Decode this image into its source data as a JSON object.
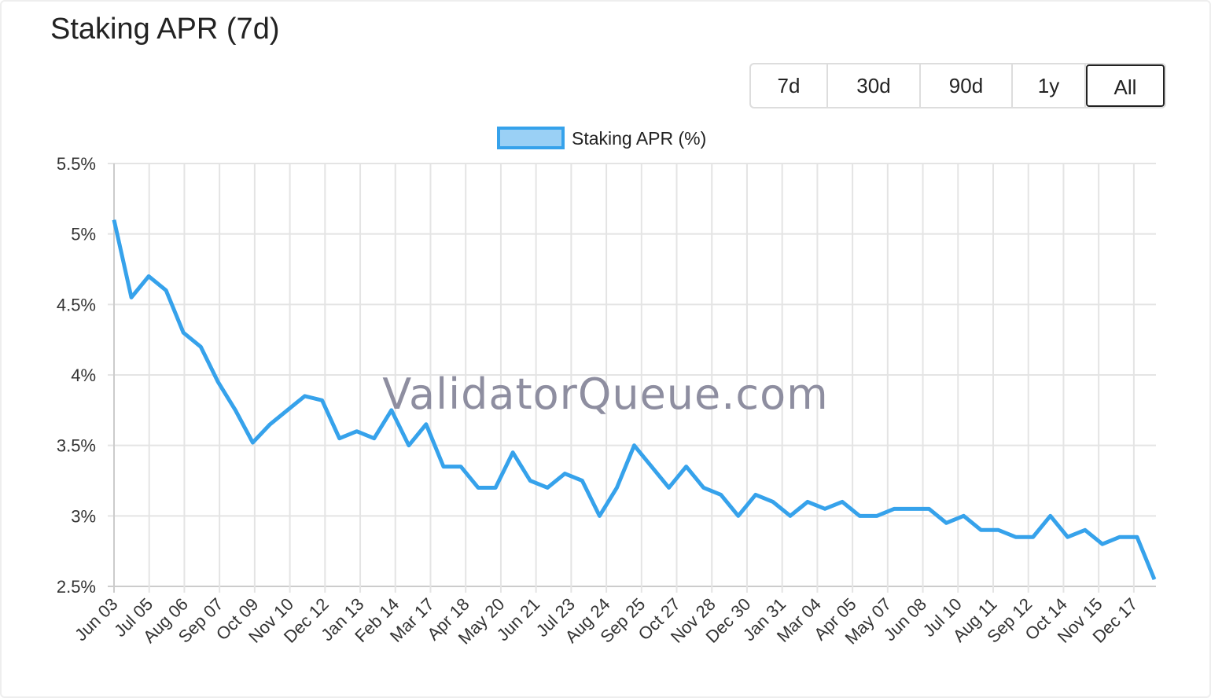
{
  "title": "Staking APR (7d)",
  "range_buttons": [
    {
      "label": "7d",
      "active": false
    },
    {
      "label": "30d",
      "active": false
    },
    {
      "label": "90d",
      "active": false
    },
    {
      "label": "1y",
      "active": false
    },
    {
      "label": "All",
      "active": true
    }
  ],
  "watermark": "ValidatorQueue.com",
  "chart_data": {
    "type": "line",
    "title": "",
    "legend": {
      "position": "top",
      "entries": [
        "Staking APR (%)"
      ]
    },
    "series": [
      {
        "name": "Staking APR (%)",
        "color": "#36a2eb",
        "fill": "#9ad0f5",
        "values": [
          5.1,
          4.55,
          4.7,
          4.6,
          4.3,
          4.2,
          3.95,
          3.75,
          3.52,
          3.65,
          3.75,
          3.85,
          3.82,
          3.55,
          3.6,
          3.55,
          3.75,
          3.5,
          3.65,
          3.35,
          3.35,
          3.2,
          3.2,
          3.45,
          3.25,
          3.2,
          3.3,
          3.25,
          3.0,
          3.2,
          3.5,
          3.35,
          3.2,
          3.35,
          3.2,
          3.15,
          3.0,
          3.15,
          3.1,
          3.0,
          3.1,
          3.05,
          3.1,
          3.0,
          3.0,
          3.05,
          3.05,
          3.05,
          2.95,
          3.0,
          2.9,
          2.9,
          2.85,
          2.85,
          3.0,
          2.85,
          2.9,
          2.8,
          2.85,
          2.85,
          2.55
        ]
      }
    ],
    "x_tick_labels": [
      "Jun 03",
      "Jul 05",
      "Aug 06",
      "Sep 07",
      "Oct 09",
      "Nov 10",
      "Dec 12",
      "Jan 13",
      "Feb 14",
      "Mar 17",
      "Apr 18",
      "May 20",
      "Jun 21",
      "Jul 23",
      "Aug 24",
      "Sep 25",
      "Oct 27",
      "Nov 28",
      "Dec 30",
      "Jan 31",
      "Mar 04",
      "Apr 05",
      "May 07",
      "Jun 08",
      "Jul 10",
      "Aug 11",
      "Sep 12",
      "Oct 14",
      "Nov 15",
      "Dec 17"
    ],
    "y_tick_labels": [
      "2.5%",
      "3%",
      "3.5%",
      "4%",
      "4.5%",
      "5%",
      "5.5%"
    ],
    "y_ticks": [
      2.5,
      3,
      3.5,
      4,
      4.5,
      5,
      5.5
    ],
    "ylim": [
      2.5,
      5.5
    ],
    "grid": true
  }
}
